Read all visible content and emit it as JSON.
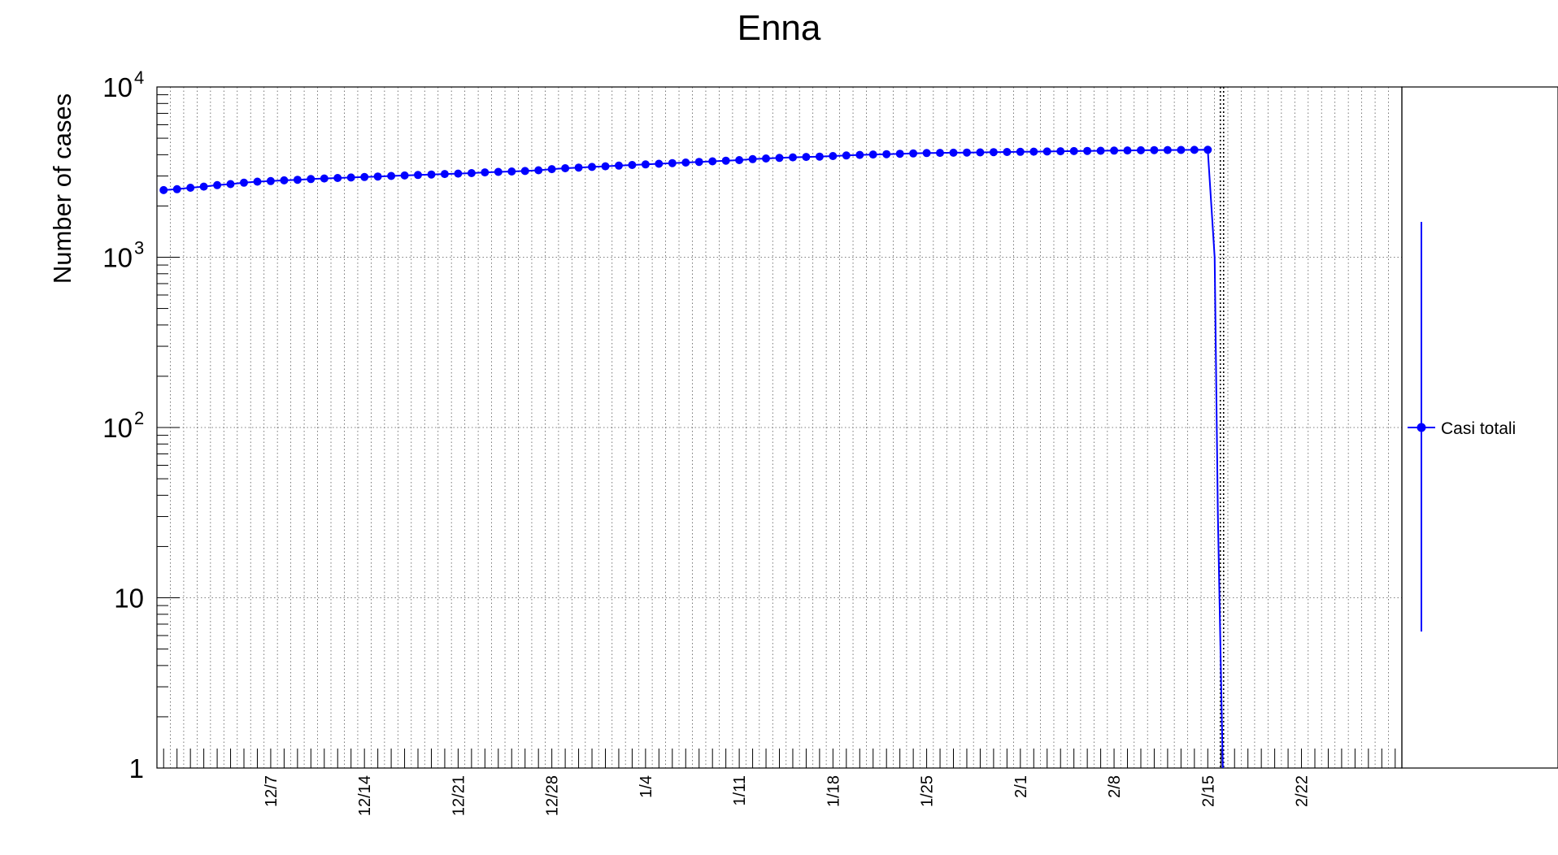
{
  "chart_data": {
    "type": "line",
    "title": "Enna",
    "xlabel": "",
    "ylabel": "Number of cases",
    "yscale": "log",
    "ylim": [
      1,
      10000
    ],
    "grid": true,
    "legend_position": "right",
    "y_tick_labels": [
      {
        "value": 1,
        "base": "1",
        "exp": ""
      },
      {
        "value": 10,
        "base": "10",
        "exp": ""
      },
      {
        "value": 100,
        "base": "10",
        "exp": "2"
      },
      {
        "value": 1000,
        "base": "10",
        "exp": "3"
      },
      {
        "value": 10000,
        "base": "10",
        "exp": "4"
      }
    ],
    "x_tick_labels": [
      "12/7",
      "12/14",
      "12/21",
      "12/28",
      "1/4",
      "1/11",
      "1/18",
      "1/25",
      "2/1",
      "2/8",
      "2/15",
      "2/22"
    ],
    "x_tick_dates": [
      "2020-12-07",
      "2020-12-14",
      "2020-12-21",
      "2020-12-28",
      "2021-01-04",
      "2021-01-11",
      "2021-01-18",
      "2021-01-25",
      "2021-02-01",
      "2021-02-08",
      "2021-02-15",
      "2021-02-22"
    ],
    "xlim": [
      "2020-11-29",
      "2021-03-02"
    ],
    "marker_date": "2021-02-16",
    "series": [
      {
        "name": "Casi totali",
        "color": "#0000ff",
        "x": [
          "2020-11-29",
          "2020-11-30",
          "2020-12-01",
          "2020-12-02",
          "2020-12-03",
          "2020-12-04",
          "2020-12-05",
          "2020-12-06",
          "2020-12-07",
          "2020-12-08",
          "2020-12-09",
          "2020-12-10",
          "2020-12-11",
          "2020-12-12",
          "2020-12-13",
          "2020-12-14",
          "2020-12-15",
          "2020-12-16",
          "2020-12-17",
          "2020-12-18",
          "2020-12-19",
          "2020-12-20",
          "2020-12-21",
          "2020-12-22",
          "2020-12-23",
          "2020-12-24",
          "2020-12-25",
          "2020-12-26",
          "2020-12-27",
          "2020-12-28",
          "2020-12-29",
          "2020-12-30",
          "2020-12-31",
          "2021-01-01",
          "2021-01-02",
          "2021-01-03",
          "2021-01-04",
          "2021-01-05",
          "2021-01-06",
          "2021-01-07",
          "2021-01-08",
          "2021-01-09",
          "2021-01-10",
          "2021-01-11",
          "2021-01-12",
          "2021-01-13",
          "2021-01-14",
          "2021-01-15",
          "2021-01-16",
          "2021-01-17",
          "2021-01-18",
          "2021-01-19",
          "2021-01-20",
          "2021-01-21",
          "2021-01-22",
          "2021-01-23",
          "2021-01-24",
          "2021-01-25",
          "2021-01-26",
          "2021-01-27",
          "2021-01-28",
          "2021-01-29",
          "2021-01-30",
          "2021-01-31",
          "2021-02-01",
          "2021-02-02",
          "2021-02-03",
          "2021-02-04",
          "2021-02-05",
          "2021-02-06",
          "2021-02-07",
          "2021-02-08",
          "2021-02-09",
          "2021-02-10",
          "2021-02-11",
          "2021-02-12",
          "2021-02-13",
          "2021-02-14",
          "2021-02-15"
        ],
        "values": [
          2480,
          2510,
          2560,
          2600,
          2650,
          2690,
          2740,
          2780,
          2800,
          2830,
          2850,
          2880,
          2900,
          2920,
          2940,
          2960,
          2980,
          3000,
          3020,
          3040,
          3060,
          3080,
          3100,
          3120,
          3150,
          3170,
          3190,
          3210,
          3240,
          3290,
          3330,
          3360,
          3390,
          3420,
          3450,
          3480,
          3510,
          3540,
          3570,
          3600,
          3630,
          3660,
          3690,
          3720,
          3770,
          3800,
          3830,
          3860,
          3880,
          3900,
          3930,
          3960,
          3990,
          4010,
          4030,
          4050,
          4070,
          4090,
          4100,
          4110,
          4120,
          4130,
          4140,
          4150,
          4160,
          4170,
          4180,
          4190,
          4200,
          4210,
          4220,
          4230,
          4240,
          4250,
          4255,
          4260,
          4265,
          4270,
          4275
        ],
        "drop_to": 1,
        "drop_date": "2021-02-16"
      }
    ]
  }
}
